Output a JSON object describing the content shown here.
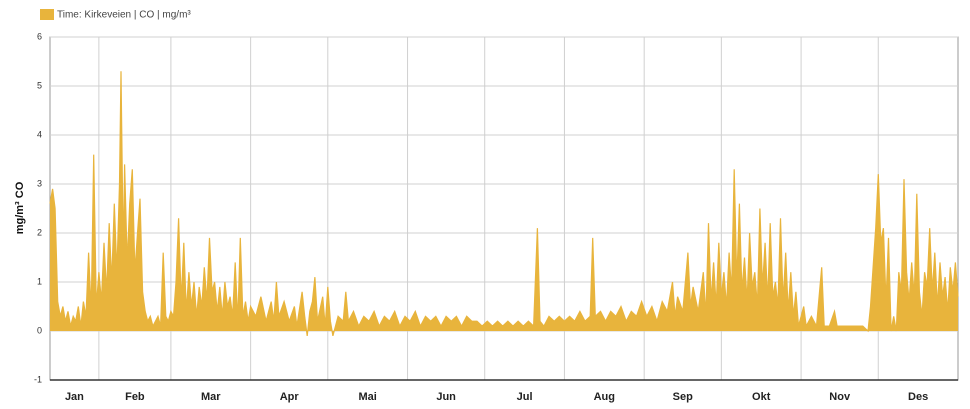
{
  "chart_data": {
    "type": "area",
    "legend": "Time: Kirkeveien | CO | mg/m³",
    "ylabel": "mg/m³ CO",
    "color": "#e8b43c",
    "grid": true,
    "xlim": [
      12,
      365
    ],
    "ylim": [
      -1,
      6
    ],
    "yticks": [
      -1,
      0,
      1,
      2,
      3,
      4,
      5,
      6
    ],
    "xticks": [
      {
        "value": 21.5,
        "label": "Jan"
      },
      {
        "value": 45,
        "label": "Feb"
      },
      {
        "value": 74.5,
        "label": "Mar"
      },
      {
        "value": 105,
        "label": "Apr"
      },
      {
        "value": 135.5,
        "label": "Mai"
      },
      {
        "value": 166,
        "label": "Jun"
      },
      {
        "value": 196.5,
        "label": "Jul"
      },
      {
        "value": 227.5,
        "label": "Aug"
      },
      {
        "value": 258,
        "label": "Sep"
      },
      {
        "value": 288.5,
        "label": "Okt"
      },
      {
        "value": 319,
        "label": "Nov"
      },
      {
        "value": 349.5,
        "label": "Des"
      }
    ],
    "xgrid": [
      31,
      59,
      90,
      120,
      151,
      181,
      212,
      243,
      273,
      304,
      334
    ],
    "x": [
      12,
      13,
      14,
      15,
      16,
      17,
      18,
      19,
      20,
      21,
      22,
      23,
      24,
      25,
      26,
      27,
      28,
      29,
      30,
      31,
      32,
      33,
      34,
      35,
      36,
      37,
      38,
      39,
      39.6,
      40.5,
      41,
      42,
      43,
      44,
      45,
      46,
      47,
      48,
      49,
      50,
      51,
      52,
      53,
      54,
      55,
      56,
      57,
      58,
      59,
      60,
      61,
      62,
      63,
      64,
      65,
      66,
      67,
      68,
      69,
      70,
      71,
      72,
      73,
      74,
      75,
      76,
      77,
      78,
      79,
      80,
      81,
      82,
      83,
      84,
      85,
      86,
      87,
      88,
      89,
      90,
      92,
      94,
      96,
      98,
      99,
      100,
      101,
      103,
      105,
      107,
      108,
      110,
      111,
      112,
      113,
      114,
      115,
      116,
      118,
      119,
      120,
      121,
      122,
      124,
      126,
      127,
      128,
      130,
      132,
      134,
      136,
      138,
      140,
      142,
      144,
      146,
      148,
      150,
      152,
      154,
      156,
      158,
      160,
      162,
      164,
      166,
      168,
      170,
      172,
      174,
      176,
      178,
      180,
      182,
      184,
      186,
      188,
      190,
      192,
      194,
      196,
      198,
      200,
      201.5,
      202.5,
      204,
      206,
      208,
      210,
      212,
      214,
      216,
      218,
      220,
      222,
      223,
      224,
      226,
      228,
      230,
      232,
      234,
      236,
      238,
      240,
      242,
      244,
      246,
      248,
      250,
      252,
      254,
      255,
      256,
      258,
      260,
      261,
      262,
      264,
      266,
      267,
      268,
      269,
      270,
      271,
      272,
      273,
      274,
      275,
      276,
      277,
      278,
      279,
      280,
      281,
      282,
      283,
      284,
      285,
      286,
      287,
      288,
      289,
      290,
      291,
      292,
      293,
      294,
      295,
      296,
      297,
      298,
      299,
      300,
      301,
      302,
      303,
      305,
      306,
      308,
      310,
      312,
      313,
      315,
      317,
      318,
      320,
      322,
      324,
      326,
      328,
      330,
      331,
      332,
      333,
      334,
      335,
      336,
      337,
      338,
      339,
      340,
      341,
      342,
      343,
      344,
      345,
      346,
      347,
      348,
      349,
      350,
      351,
      352,
      353,
      354,
      355,
      356,
      357,
      358,
      359,
      360,
      361,
      362,
      363,
      364,
      365
    ],
    "values": [
      2.6,
      2.9,
      2.5,
      0.6,
      0.3,
      0.5,
      0.2,
      0.4,
      0.1,
      0.3,
      0.2,
      0.5,
      0.1,
      0.6,
      0.3,
      1.6,
      0.4,
      3.6,
      0.5,
      1.2,
      0.6,
      1.8,
      0.8,
      2.2,
      1.0,
      2.6,
      1.2,
      3.0,
      5.3,
      1.5,
      3.4,
      1.4,
      2.6,
      3.3,
      1.2,
      2.0,
      2.7,
      0.8,
      0.4,
      0.2,
      0.3,
      0.1,
      0.2,
      0.3,
      0.1,
      1.6,
      0.3,
      0.2,
      0.4,
      0.3,
      1.0,
      2.3,
      0.6,
      1.8,
      0.4,
      1.2,
      0.5,
      1.0,
      0.3,
      0.9,
      0.5,
      1.3,
      0.6,
      1.9,
      0.8,
      1.0,
      0.4,
      0.9,
      0.3,
      1.0,
      0.5,
      0.7,
      0.3,
      1.4,
      0.2,
      1.9,
      0.3,
      0.6,
      0.2,
      0.5,
      0.3,
      0.7,
      0.2,
      0.6,
      0.2,
      1.0,
      0.3,
      0.6,
      0.2,
      0.5,
      0.1,
      0.8,
      0.3,
      -0.1,
      0.4,
      0.6,
      1.1,
      0.2,
      0.7,
      0.1,
      0.9,
      0.2,
      -0.1,
      0.3,
      0.2,
      0.8,
      0.2,
      0.4,
      0.1,
      0.3,
      0.2,
      0.4,
      0.1,
      0.3,
      0.2,
      0.4,
      0.1,
      0.3,
      0.2,
      0.4,
      0.1,
      0.3,
      0.2,
      0.3,
      0.1,
      0.3,
      0.2,
      0.3,
      0.1,
      0.3,
      0.2,
      0.2,
      0.1,
      0.2,
      0.1,
      0.2,
      0.1,
      0.2,
      0.1,
      0.2,
      0.1,
      0.2,
      0.1,
      2.1,
      0.2,
      0.1,
      0.3,
      0.2,
      0.3,
      0.2,
      0.3,
      0.2,
      0.4,
      0.2,
      0.3,
      1.9,
      0.3,
      0.4,
      0.2,
      0.4,
      0.3,
      0.5,
      0.2,
      0.4,
      0.3,
      0.6,
      0.3,
      0.5,
      0.2,
      0.6,
      0.4,
      1.0,
      0.3,
      0.7,
      0.4,
      1.6,
      0.5,
      0.9,
      0.4,
      1.2,
      0.3,
      2.2,
      0.6,
      1.4,
      0.5,
      1.8,
      0.7,
      1.2,
      0.5,
      1.6,
      0.8,
      3.3,
      1.0,
      2.6,
      0.8,
      1.5,
      0.6,
      2.0,
      0.9,
      1.2,
      0.5,
      2.5,
      0.9,
      1.8,
      0.6,
      2.2,
      0.7,
      1.0,
      0.5,
      2.3,
      0.6,
      1.6,
      0.4,
      1.2,
      0.3,
      0.8,
      0.1,
      0.5,
      0.1,
      0.3,
      0.1,
      1.3,
      0.1,
      0.1,
      0.4,
      0.1,
      0.1,
      0.1,
      0.1,
      0.1,
      0.1,
      0.0,
      0.5,
      1.3,
      2.1,
      3.2,
      1.8,
      2.1,
      0.6,
      1.9,
      0.0,
      0.3,
      0.0,
      1.2,
      0.8,
      3.1,
      1.2,
      0.6,
      1.4,
      0.7,
      2.8,
      0.8,
      0.3,
      1.2,
      0.9,
      2.1,
      0.8,
      1.6,
      0.5,
      1.4,
      0.7,
      1.1,
      0.4,
      1.3,
      0.8,
      1.4,
      0.7
    ]
  }
}
